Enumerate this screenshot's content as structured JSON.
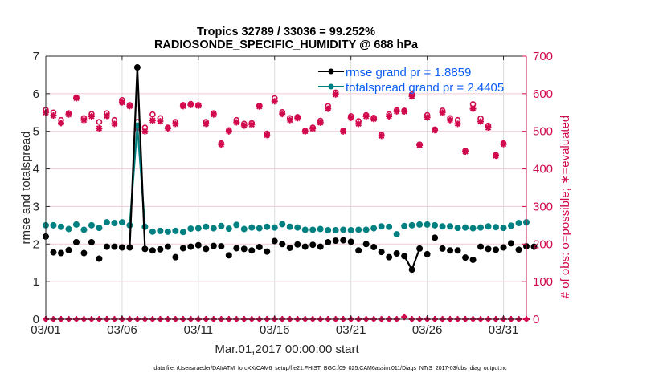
{
  "chart_data": {
    "type": "line",
    "title": [
      "Tropics 32789 / 33036 = 99.252%",
      "RADIOSONDE_SPECIFIC_HUMIDITY @ 688 hPa"
    ],
    "xlabel": "Mar.01,2017 00:00:00 start",
    "ylabel": "rmse and totalspread",
    "ylabel_right": "# of obs: o=possible; ∗=evaluated",
    "ylim": [
      0,
      7
    ],
    "ylim_right": [
      0,
      700
    ],
    "yticks": [
      0,
      1,
      2,
      3,
      4,
      5,
      6,
      7
    ],
    "yticks_right": [
      0,
      100,
      200,
      300,
      400,
      500,
      600,
      700
    ],
    "xlim": [
      0,
      31.5
    ],
    "xticks": [
      0,
      5,
      10,
      15,
      20,
      25,
      30
    ],
    "xtick_labels": [
      "03/01",
      "03/06",
      "03/11",
      "03/16",
      "03/21",
      "03/26",
      "03/31"
    ],
    "grid": true,
    "legend_position": "top-right",
    "footer": "data file: /Users/raeder/DAI/ATM_forcXX/CAM6_setup/f.e21.FHIST_BGC.f09_025.CAM6assim.011/Diags_NTrS_2017-03/obs_diag_output.nc",
    "colors": {
      "rmse": "#000000",
      "totalspread": "#008080",
      "obs": "#d1094d",
      "legend_text": "#0a5cf5"
    },
    "series": [
      {
        "name": "rmse grand pr = 1.8859",
        "key": "rmse",
        "step_days": 0.5,
        "values": [
          2.2,
          1.78,
          1.76,
          1.84,
          2.05,
          1.76,
          2.05,
          1.61,
          1.93,
          1.93,
          1.91,
          1.91,
          6.7,
          1.87,
          1.83,
          1.86,
          1.93,
          1.65,
          1.89,
          1.93,
          1.97,
          1.87,
          1.95,
          1.94,
          1.7,
          1.89,
          1.87,
          1.83,
          1.92,
          1.8,
          2.08,
          2.0,
          1.9,
          1.99,
          1.93,
          1.98,
          1.93,
          2.05,
          2.09,
          2.1,
          2.06,
          1.83,
          2.0,
          1.92,
          1.79,
          1.65,
          1.75,
          1.68,
          1.32,
          1.88,
          1.73,
          2.17,
          1.88,
          1.83,
          1.83,
          1.64,
          1.58,
          1.93,
          1.87,
          1.85,
          1.91,
          2.02,
          1.85,
          1.94,
          1.93
        ]
      },
      {
        "name": "totalspread grand pr = 2.4405",
        "key": "totalspread",
        "step_days": 0.5,
        "values": [
          2.5,
          2.5,
          2.46,
          2.4,
          2.52,
          2.38,
          2.5,
          2.43,
          2.58,
          2.56,
          2.58,
          2.5,
          5.15,
          2.46,
          2.33,
          2.35,
          2.33,
          2.35,
          2.32,
          2.41,
          2.42,
          2.46,
          2.42,
          2.48,
          2.41,
          2.51,
          2.4,
          2.44,
          2.42,
          2.46,
          2.44,
          2.53,
          2.46,
          2.44,
          2.38,
          2.38,
          2.4,
          2.37,
          2.37,
          2.38,
          2.37,
          2.38,
          2.38,
          2.42,
          2.47,
          2.46,
          2.26,
          2.48,
          2.5,
          2.52,
          2.52,
          2.5,
          2.47,
          2.47,
          2.43,
          2.44,
          2.42,
          2.44,
          2.47,
          2.45,
          2.43,
          2.49,
          2.56,
          2.58
        ]
      },
      {
        "name": "obs possible",
        "key": "possible",
        "axis": "right",
        "step_days": 0.5,
        "values": [
          557,
          550,
          530,
          548,
          590,
          535,
          546,
          525,
          548,
          530,
          583,
          570,
          525,
          510,
          545,
          535,
          510,
          525,
          570,
          573,
          570,
          525,
          548,
          468,
          503,
          530,
          520,
          522,
          568,
          494,
          588,
          551,
          535,
          538,
          501,
          510,
          528,
          567,
          603,
          502,
          540,
          527,
          543,
          536,
          491,
          545,
          556,
          555,
          598,
          465,
          543,
          505,
          555,
          535,
          530,
          448,
          572,
          534,
          515,
          437,
          468
        ]
      },
      {
        "name": "obs evaluated",
        "key": "evaluated",
        "axis": "right",
        "step_days": 0.5,
        "values": [
          550,
          542,
          522,
          545,
          588,
          530,
          540,
          508,
          541,
          520,
          577,
          567,
          508,
          500,
          529,
          527,
          508,
          520,
          567,
          570,
          568,
          520,
          545,
          465,
          500,
          524,
          515,
          518,
          566,
          490,
          580,
          546,
          530,
          535,
          500,
          507,
          523,
          560,
          598,
          500,
          536,
          520,
          540,
          533,
          488,
          540,
          553,
          553,
          593,
          463,
          537,
          503,
          550,
          530,
          520,
          446,
          560,
          526,
          510,
          435,
          466
        ]
      },
      {
        "name": "obs possible (zero line)",
        "key": "zero_possible",
        "axis": "right",
        "step_days": 0.5,
        "count": 64,
        "value": 0,
        "bump_index": 47,
        "bump_value": 6
      }
    ],
    "legend": [
      "rmse grand pr = 1.8859",
      "totalspread grand pr = 2.4405"
    ]
  }
}
